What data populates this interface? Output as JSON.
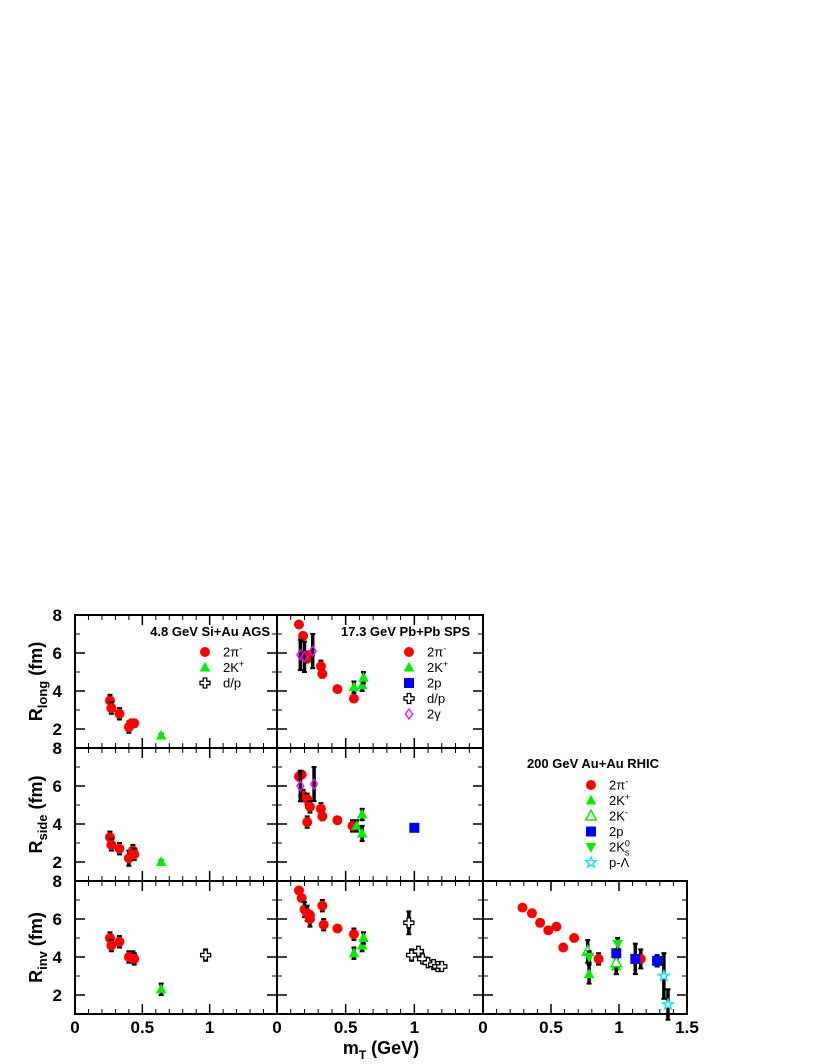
{
  "chart_data": {
    "type": "scatter",
    "xlabel": {
      "main": "m",
      "sub": "T",
      "rest": " (GeV)"
    },
    "x_ticks": [
      "0",
      "0.5",
      "1",
      "1.5"
    ],
    "y_ticks": [
      "2",
      "4",
      "6",
      "8"
    ],
    "rows": [
      {
        "key": "long",
        "ylabel": {
          "main": "R",
          "sub": "long",
          "rest": " (fm)"
        }
      },
      {
        "key": "side",
        "ylabel": {
          "main": "R",
          "sub": "side",
          "rest": " (fm)"
        }
      },
      {
        "key": "inv",
        "ylabel": {
          "main": "R",
          "sub": "inv",
          "rest": " (fm)"
        }
      }
    ],
    "xlim": [
      0,
      1.5
    ],
    "ylim": [
      1,
      8
    ],
    "grid": false,
    "colors": {
      "red": "#ff0000",
      "green": "#00ee00",
      "blue": "#0000ff",
      "magenta": "#ff00ff",
      "cyan": "#00e5ee",
      "black": "#000000"
    },
    "columns": [
      {
        "title": "4.8 GeV Si+Au AGS",
        "legend_position": "top-right",
        "legend": [
          {
            "text": "2π",
            "sup": "-",
            "marker": "circle",
            "color": "#ff0000"
          },
          {
            "text": "2K",
            "sup": "+",
            "marker": "triangle",
            "color": "#00ee00"
          },
          {
            "text": "d/p",
            "marker": "cross-open",
            "color": "#000000"
          }
        ],
        "panels": {
          "long": [
            {
              "marker": "circle",
              "color": "#ff0000",
              "points": [
                [
                  0.26,
                  3.5,
                  0.3
                ],
                [
                  0.27,
                  3.1,
                  0.3
                ],
                [
                  0.33,
                  2.8,
                  0.3
                ],
                [
                  0.4,
                  2.1,
                  0.3
                ],
                [
                  0.42,
                  2.3,
                  0.2
                ],
                [
                  0.44,
                  2.3,
                  0.2
                ]
              ]
            },
            {
              "marker": "triangle",
              "color": "#00ee00",
              "points": [
                [
                  0.64,
                  1.65,
                  0.1
                ]
              ]
            }
          ],
          "side": [
            {
              "marker": "circle",
              "color": "#ff0000",
              "points": [
                [
                  0.26,
                  3.3,
                  0.3
                ],
                [
                  0.27,
                  2.9,
                  0.3
                ],
                [
                  0.33,
                  2.7,
                  0.3
                ],
                [
                  0.4,
                  2.2,
                  0.4
                ],
                [
                  0.43,
                  2.6,
                  0.3
                ],
                [
                  0.44,
                  2.4,
                  0.3
                ]
              ]
            },
            {
              "marker": "triangle",
              "color": "#00ee00",
              "points": [
                [
                  0.64,
                  2.0,
                  0.1
                ]
              ]
            }
          ],
          "inv": [
            {
              "marker": "circle",
              "color": "#ff0000",
              "points": [
                [
                  0.26,
                  5.0,
                  0.3
                ],
                [
                  0.27,
                  4.6,
                  0.3
                ],
                [
                  0.33,
                  4.8,
                  0.3
                ],
                [
                  0.4,
                  4.0,
                  0.3
                ],
                [
                  0.43,
                  4.0,
                  0.3
                ],
                [
                  0.44,
                  3.9,
                  0.3
                ]
              ]
            },
            {
              "marker": "triangle",
              "color": "#00ee00",
              "points": [
                [
                  0.64,
                  2.3,
                  0.3
                ]
              ]
            },
            {
              "marker": "cross-open",
              "color": "#000000",
              "points": [
                [
                  0.97,
                  4.1,
                  0.3
                ]
              ]
            }
          ]
        }
      },
      {
        "title": "17.3 GeV Pb+Pb SPS",
        "legend_position": "top-right",
        "legend": [
          {
            "text": "2π",
            "sup": "-",
            "marker": "circle",
            "color": "#ff0000"
          },
          {
            "text": "2K",
            "sup": "+",
            "marker": "triangle",
            "color": "#00ee00"
          },
          {
            "text": "2p",
            "marker": "square",
            "color": "#0000ff"
          },
          {
            "text": "d/p",
            "marker": "cross-open",
            "color": "#000000"
          },
          {
            "text": "2γ",
            "marker": "diamond-open",
            "color": "#ff00ff"
          }
        ],
        "panels": {
          "long": [
            {
              "marker": "circle",
              "color": "#ff0000",
              "points": [
                [
                  0.16,
                  7.5,
                  0
                ],
                [
                  0.19,
                  6.9,
                  0
                ],
                [
                  0.2,
                  5.9,
                  0
                ],
                [
                  0.22,
                  5.7,
                  0
                ],
                [
                  0.24,
                  5.9,
                  0
                ],
                [
                  0.32,
                  5.3,
                  0.3
                ],
                [
                  0.33,
                  4.9,
                  0.2
                ],
                [
                  0.44,
                  4.1,
                  0
                ],
                [
                  0.56,
                  3.6,
                  0
                ]
              ]
            },
            {
              "marker": "triangle",
              "color": "#00ee00",
              "points": [
                [
                  0.56,
                  4.2,
                  0.3
                ],
                [
                  0.62,
                  4.3,
                  0.3
                ],
                [
                  0.63,
                  4.7,
                  0.3
                ]
              ]
            },
            {
              "marker": "diamond-open",
              "color": "#ff00ff",
              "points": [
                [
                  0.17,
                  5.9,
                  0.8
                ],
                [
                  0.2,
                  5.8,
                  0.8
                ],
                [
                  0.26,
                  6.1,
                  0.9
                ]
              ]
            }
          ],
          "side": [
            {
              "marker": "circle",
              "color": "#ff0000",
              "points": [
                [
                  0.16,
                  6.5,
                  0.2
                ],
                [
                  0.18,
                  6.6,
                  0
                ],
                [
                  0.19,
                  5.5,
                  0.3
                ],
                [
                  0.22,
                  5.3,
                  0.3
                ],
                [
                  0.24,
                  4.9,
                  0.3
                ],
                [
                  0.22,
                  4.1,
                  0.3
                ],
                [
                  0.32,
                  4.8,
                  0.3
                ],
                [
                  0.33,
                  4.4,
                  0.2
                ],
                [
                  0.44,
                  4.2,
                  0
                ],
                [
                  0.55,
                  3.9,
                  0.3
                ]
              ]
            },
            {
              "marker": "triangle",
              "color": "#00ee00",
              "points": [
                [
                  0.58,
                  3.9,
                  0.3
                ],
                [
                  0.62,
                  4.5,
                  0.3
                ],
                [
                  0.62,
                  3.5,
                  0.4
                ]
              ]
            },
            {
              "marker": "square",
              "color": "#0000ff",
              "points": [
                [
                  1.0,
                  3.8,
                  0
                ]
              ]
            },
            {
              "marker": "diamond-open",
              "color": "#ff00ff",
              "points": [
                [
                  0.17,
                  6.0,
                  0.8
                ],
                [
                  0.27,
                  6.1,
                  0.9
                ]
              ]
            }
          ],
          "inv": [
            {
              "marker": "circle",
              "color": "#ff0000",
              "points": [
                [
                  0.16,
                  7.5,
                  0
                ],
                [
                  0.18,
                  7.1,
                  0
                ],
                [
                  0.2,
                  6.5,
                  0.4
                ],
                [
                  0.22,
                  6.3,
                  0.4
                ],
                [
                  0.24,
                  6.0,
                  0.4
                ],
                [
                  0.24,
                  6.2,
                  0
                ],
                [
                  0.33,
                  6.7,
                  0.3
                ],
                [
                  0.34,
                  5.7,
                  0.3
                ],
                [
                  0.44,
                  5.5,
                  0
                ],
                [
                  0.56,
                  5.2,
                  0.3
                ]
              ]
            },
            {
              "marker": "triangle",
              "color": "#00ee00",
              "points": [
                [
                  0.56,
                  4.2,
                  0.3
                ],
                [
                  0.62,
                  4.6,
                  0.3
                ],
                [
                  0.63,
                  5.0,
                  0.3
                ]
              ]
            },
            {
              "marker": "cross-open",
              "color": "#000000",
              "points": [
                [
                  0.96,
                  5.8,
                  0.6
                ],
                [
                  0.98,
                  4.1,
                  0.3
                ],
                [
                  1.03,
                  4.3,
                  0
                ],
                [
                  1.06,
                  3.9,
                  0
                ],
                [
                  1.1,
                  3.7,
                  0
                ],
                [
                  1.14,
                  3.6,
                  0
                ],
                [
                  1.17,
                  3.5,
                  0
                ],
                [
                  1.2,
                  3.5,
                  0
                ]
              ]
            }
          ]
        }
      },
      {
        "title": "200 GeV Au+Au RHIC",
        "legend_position": "right-middle",
        "legend": [
          {
            "text": "2π",
            "sup": "-",
            "marker": "circle",
            "color": "#ff0000"
          },
          {
            "text": "2K",
            "sup": "+",
            "marker": "triangle",
            "color": "#00ee00"
          },
          {
            "text": "2K",
            "sup": "-",
            "marker": "triangle-open",
            "color": "#00ee00"
          },
          {
            "text": "2p",
            "marker": "square",
            "color": "#0000ff"
          },
          {
            "text": "2K",
            "sup": "0",
            "sub": "s",
            "marker": "triangle-down",
            "color": "#00ee00"
          },
          {
            "text": "p-Λ",
            "marker": "star-open",
            "color": "#00e5ee"
          }
        ],
        "panels": {
          "inv": [
            {
              "marker": "circle",
              "color": "#ff0000",
              "points": [
                [
                  0.29,
                  6.6,
                  0
                ],
                [
                  0.36,
                  6.3,
                  0
                ],
                [
                  0.42,
                  5.8,
                  0
                ],
                [
                  0.48,
                  5.4,
                  0
                ],
                [
                  0.54,
                  5.6,
                  0
                ],
                [
                  0.59,
                  4.5,
                  0
                ],
                [
                  0.67,
                  5.0,
                  0
                ],
                [
                  0.85,
                  3.9,
                  0.3
                ],
                [
                  1.16,
                  3.9,
                  0.5
                ]
              ]
            },
            {
              "marker": "triangle",
              "color": "#00ee00",
              "points": [
                [
                  0.78,
                  3.1,
                  0.5
                ],
                [
                  0.98,
                  3.5,
                  0.4
                ]
              ]
            },
            {
              "marker": "triangle-open",
              "color": "#00ee00",
              "points": [
                [
                  0.77,
                  4.3,
                  0.6
                ],
                [
                  0.98,
                  3.7,
                  0.6
                ]
              ]
            },
            {
              "marker": "square",
              "color": "#0000ff",
              "points": [
                [
                  0.98,
                  4.2,
                  0
                ],
                [
                  1.12,
                  3.9,
                  0.8
                ],
                [
                  1.28,
                  3.8,
                  0.3
                ]
              ]
            },
            {
              "marker": "triangle-down",
              "color": "#00ee00",
              "points": [
                [
                  0.78,
                  4.0,
                  0.3
                ],
                [
                  0.99,
                  4.7,
                  0.3
                ]
              ]
            },
            {
              "marker": "star-open",
              "color": "#00e5ee",
              "points": [
                [
                  1.33,
                  3.0,
                  1.2
                ],
                [
                  1.36,
                  1.5,
                  0.8
                ]
              ]
            }
          ]
        }
      }
    ]
  }
}
